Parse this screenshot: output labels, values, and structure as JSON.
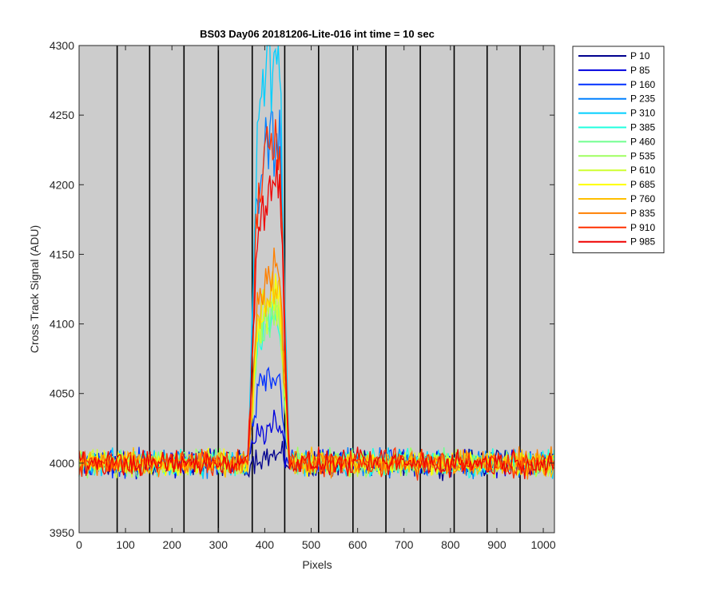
{
  "chart_data": {
    "type": "line",
    "title": "BS03 Day06 20181206-Lite-016 int time = 10 sec",
    "xlabel": "Pixels",
    "ylabel": "Cross Track Signal (ADU)",
    "xlim": [
      0,
      1024
    ],
    "ylim": [
      3950,
      4300
    ],
    "xticks": [
      0,
      100,
      200,
      300,
      400,
      500,
      600,
      700,
      800,
      900,
      1000
    ],
    "yticks": [
      3950,
      4000,
      4050,
      4100,
      4150,
      4200,
      4250,
      4300
    ],
    "vertical_lines_x": [
      82,
      152,
      226,
      300,
      373,
      443,
      516,
      590,
      661,
      735,
      808,
      879,
      950
    ],
    "plot_background": "#cccccc",
    "legend_location": "outside-top-right",
    "peak_x_range": [
      373,
      443
    ],
    "baseline": 4000,
    "series": [
      {
        "name": "P 10",
        "color": "#00008f",
        "peak": 4005
      },
      {
        "name": "P 85",
        "color": "#0000df",
        "peak": 4025
      },
      {
        "name": "P 160",
        "color": "#0030ff",
        "peak": 4060
      },
      {
        "name": "P 235",
        "color": "#0080ff",
        "peak": 4238
      },
      {
        "name": "P 310",
        "color": "#00cfff",
        "peak": 4292
      },
      {
        "name": "P 385",
        "color": "#20ffdf",
        "peak": 4110
      },
      {
        "name": "P 460",
        "color": "#70ff8f",
        "peak": 4112
      },
      {
        "name": "P 535",
        "color": "#9fff60",
        "peak": 4108
      },
      {
        "name": "P 610",
        "color": "#cfff30",
        "peak": 4115
      },
      {
        "name": "P 685",
        "color": "#ffff00",
        "peak": 4120
      },
      {
        "name": "P 760",
        "color": "#ffbf00",
        "peak": 4130
      },
      {
        "name": "P 835",
        "color": "#ff8000",
        "peak": 4140
      },
      {
        "name": "P 910",
        "color": "#ff3000",
        "peak": 4230
      },
      {
        "name": "P 985",
        "color": "#ef0000",
        "peak": 4205
      }
    ]
  }
}
